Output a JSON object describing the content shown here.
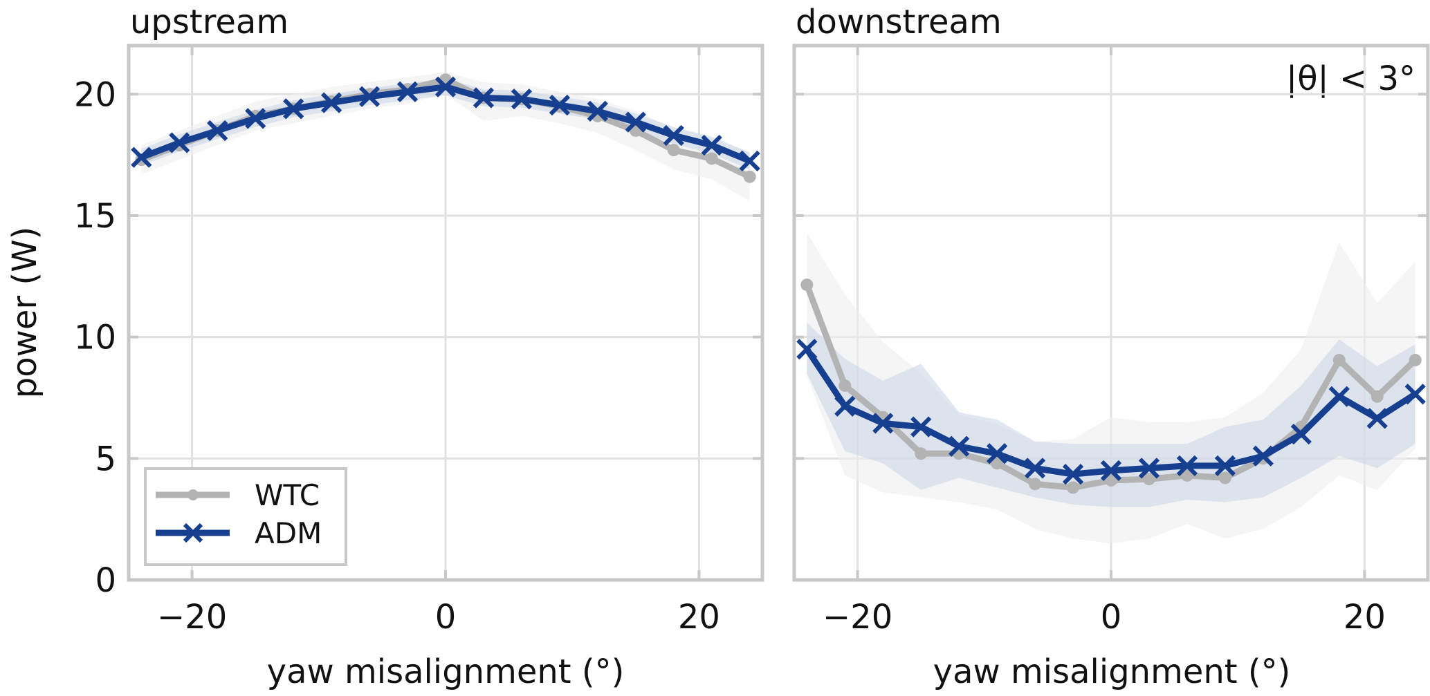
{
  "chart_data": [
    {
      "type": "line",
      "title": "upstream",
      "xlabel": "yaw misalignment (°)",
      "ylabel": "power (W)",
      "xlim": [
        -25,
        25
      ],
      "ylim": [
        0,
        22
      ],
      "xticks": [
        -20,
        0,
        20
      ],
      "xtick_labels": [
        "−20",
        "0",
        "20"
      ],
      "yticks": [
        0,
        5,
        10,
        15,
        20
      ],
      "ytick_labels": [
        "0",
        "5",
        "10",
        "15",
        "20"
      ],
      "grid": true,
      "legend": "lower-left",
      "x": [
        -24,
        -21,
        -18,
        -15,
        -12,
        -9,
        -6,
        -3,
        0,
        3,
        6,
        9,
        12,
        15,
        18,
        21,
        24
      ],
      "series": [
        {
          "name": "WTC",
          "color": "#b3b3b3",
          "marker": "circle",
          "values": [
            17.3,
            17.9,
            18.5,
            19.1,
            19.4,
            19.7,
            20.0,
            20.2,
            20.6,
            19.85,
            19.8,
            19.5,
            19.1,
            18.5,
            17.7,
            17.35,
            16.6
          ],
          "band_lower": [
            16.7,
            17.3,
            17.9,
            18.5,
            18.8,
            19.1,
            19.4,
            19.6,
            20.0,
            18.9,
            19.1,
            18.8,
            18.4,
            17.7,
            16.9,
            16.5,
            15.6
          ],
          "band_upper": [
            17.9,
            18.5,
            19.1,
            19.7,
            20.0,
            20.3,
            20.5,
            20.7,
            20.9,
            20.5,
            20.4,
            20.1,
            19.8,
            19.3,
            18.6,
            18.2,
            17.6
          ]
        },
        {
          "name": "ADM",
          "color": "#163f8f",
          "marker": "x",
          "values": [
            17.4,
            18.0,
            18.5,
            19.0,
            19.4,
            19.65,
            19.9,
            20.1,
            20.3,
            19.85,
            19.8,
            19.55,
            19.3,
            18.85,
            18.3,
            17.9,
            17.25
          ],
          "band_lower": [
            17.05,
            17.65,
            18.15,
            18.65,
            19.05,
            19.3,
            19.55,
            19.75,
            19.95,
            19.5,
            19.45,
            19.2,
            18.95,
            18.5,
            17.95,
            17.55,
            16.9
          ],
          "band_upper": [
            17.75,
            18.35,
            18.85,
            19.35,
            19.75,
            20.0,
            20.25,
            20.45,
            20.65,
            20.2,
            20.15,
            19.9,
            19.65,
            19.2,
            18.65,
            18.25,
            17.6
          ]
        }
      ]
    },
    {
      "type": "line",
      "title": "downstream",
      "annotation": "|θ| < 3°",
      "xlabel": "yaw misalignment (°)",
      "xlim": [
        -25,
        25
      ],
      "ylim": [
        0,
        22
      ],
      "xticks": [
        -20,
        0,
        20
      ],
      "xtick_labels": [
        "−20",
        "0",
        "20"
      ],
      "yticks": [
        0,
        5,
        10,
        15,
        20
      ],
      "grid": true,
      "x": [
        -24,
        -21,
        -18,
        -15,
        -12,
        -9,
        -6,
        -3,
        0,
        3,
        6,
        9,
        12,
        15,
        18,
        21,
        24
      ],
      "series": [
        {
          "name": "WTC",
          "color": "#b3b3b3",
          "marker": "circle",
          "values": [
            12.15,
            8.0,
            6.7,
            5.2,
            5.2,
            4.8,
            3.95,
            3.8,
            4.1,
            4.15,
            4.3,
            4.2,
            5.0,
            6.3,
            9.05,
            7.55,
            9.05
          ],
          "band_lower": [
            8.4,
            4.3,
            3.6,
            3.4,
            3.2,
            2.9,
            2.1,
            1.7,
            1.5,
            1.7,
            2.3,
            1.7,
            2.1,
            3.0,
            4.3,
            3.7,
            5.4
          ],
          "band_upper": [
            14.3,
            11.75,
            9.8,
            8.5,
            6.8,
            6.4,
            5.7,
            5.8,
            6.7,
            6.5,
            6.5,
            6.7,
            7.7,
            9.5,
            13.9,
            11.4,
            13.1
          ]
        },
        {
          "name": "ADM",
          "color": "#163f8f",
          "marker": "x",
          "values": [
            9.5,
            7.15,
            6.45,
            6.3,
            5.5,
            5.2,
            4.6,
            4.35,
            4.5,
            4.6,
            4.7,
            4.7,
            5.1,
            6.0,
            7.55,
            6.65,
            7.65
          ],
          "band_lower": [
            8.5,
            5.3,
            4.8,
            3.7,
            4.2,
            3.8,
            3.4,
            3.1,
            3.0,
            3.0,
            3.3,
            3.2,
            3.4,
            4.2,
            5.1,
            4.6,
            5.6
          ],
          "band_upper": [
            10.6,
            9.1,
            8.2,
            8.9,
            6.9,
            6.6,
            5.7,
            5.6,
            5.6,
            5.6,
            5.6,
            6.3,
            6.6,
            8.0,
            9.9,
            8.8,
            9.7
          ]
        }
      ]
    }
  ]
}
